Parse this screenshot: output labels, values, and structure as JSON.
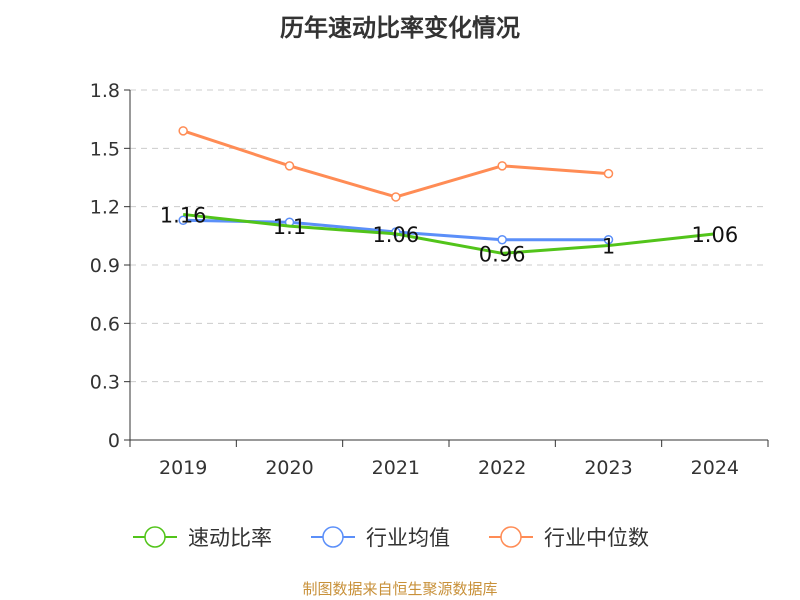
{
  "chart_data": {
    "type": "line",
    "title": "历年速动比率变化情况",
    "categories": [
      "2019",
      "2020",
      "2021",
      "2022",
      "2023",
      "2024"
    ],
    "ylim": [
      0,
      1.8
    ],
    "yticks": [
      "0",
      "0.3",
      "0.6",
      "0.9",
      "1.2",
      "1.5",
      "1.8"
    ],
    "grid": true,
    "legend_position": "bottom",
    "series": [
      {
        "name": "速动比率",
        "color": "#52c41a",
        "values": [
          1.16,
          1.1,
          1.06,
          0.96,
          1.0,
          1.06
        ],
        "labels": [
          "1.16",
          "1.1",
          "1.06",
          "0.96",
          "1",
          "1.06"
        ]
      },
      {
        "name": "行业均值",
        "color": "#5b8ff9",
        "values": [
          1.13,
          1.12,
          1.07,
          1.03,
          1.03,
          null
        ]
      },
      {
        "name": "行业中位数",
        "color": "#ff8c55",
        "values": [
          1.59,
          1.41,
          1.25,
          1.41,
          1.37,
          null
        ]
      }
    ],
    "source": "制图数据来自恒生聚源数据库"
  }
}
